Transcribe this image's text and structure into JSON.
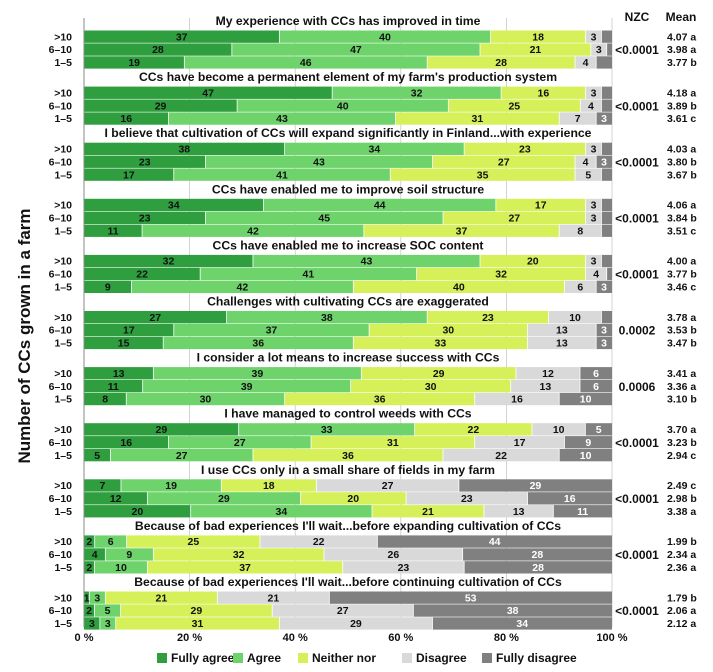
{
  "chart_data": {
    "type": "bar",
    "orientation": "horizontal",
    "stacked": true,
    "percent": true,
    "ylabel": "Number of CCs grown in a farm",
    "xticks": [
      "0 %",
      "20 %",
      "40 %",
      "60 %",
      "80 %",
      "100 %"
    ],
    "xlim": [
      0,
      100
    ],
    "col_headers": {
      "nzc": "NZC",
      "mean": "Mean"
    },
    "categories": [
      ">10",
      "6–10",
      "1–5"
    ],
    "legend": [
      {
        "name": "Fully agree",
        "color": "#2e9e3e"
      },
      {
        "name": "Agree",
        "color": "#6fd36c"
      },
      {
        "name": "Neither nor",
        "color": "#d6f05a"
      },
      {
        "name": "Disagree",
        "color": "#d9d9d9"
      },
      {
        "name": "Fully disagree",
        "color": "#808080"
      }
    ],
    "groups": [
      {
        "title": "My experience with CCs has improved in time",
        "nzc": "<0.0001",
        "rows": [
          {
            "cat": ">10",
            "values": [
              37,
              40,
              18,
              3,
              2
            ],
            "labels": [
              "37",
              "40",
              "18",
              "3",
              ""
            ],
            "mean": "4.07 a"
          },
          {
            "cat": "6–10",
            "values": [
              28,
              47,
              21,
              3,
              1
            ],
            "labels": [
              "28",
              "47",
              "21",
              "3",
              ""
            ],
            "mean": "3.98 a"
          },
          {
            "cat": "1–5",
            "values": [
              19,
              46,
              28,
              4,
              3
            ],
            "labels": [
              "19",
              "46",
              "28",
              "4",
              ""
            ],
            "mean": "3.77 b"
          }
        ]
      },
      {
        "title": "CCs have become a permanent element of my farm's production system",
        "nzc": "<0.0001",
        "rows": [
          {
            "cat": ">10",
            "values": [
              47,
              32,
              16,
              3,
              2
            ],
            "labels": [
              "47",
              "32",
              "16",
              "3",
              ""
            ],
            "mean": "4.18 a"
          },
          {
            "cat": "6–10",
            "values": [
              29,
              40,
              25,
              4,
              2
            ],
            "labels": [
              "29",
              "40",
              "25",
              "4",
              ""
            ],
            "mean": "3.89 b"
          },
          {
            "cat": "1–5",
            "values": [
              16,
              43,
              31,
              7,
              3
            ],
            "labels": [
              "16",
              "43",
              "31",
              "7",
              "3"
            ],
            "mean": "3.61 c"
          }
        ]
      },
      {
        "title": "I believe that cultivation of CCs will expand significantly in Finland...with experience",
        "nzc": "<0.0001",
        "rows": [
          {
            "cat": ">10",
            "values": [
              38,
              34,
              23,
              3,
              2
            ],
            "labels": [
              "38",
              "34",
              "23",
              "3",
              ""
            ],
            "mean": "4.03 a"
          },
          {
            "cat": "6–10",
            "values": [
              23,
              43,
              27,
              4,
              3
            ],
            "labels": [
              "23",
              "43",
              "27",
              "4",
              "3"
            ],
            "mean": "3.80 b"
          },
          {
            "cat": "1–5",
            "values": [
              17,
              41,
              35,
              5,
              2
            ],
            "labels": [
              "17",
              "41",
              "35",
              "5",
              ""
            ],
            "mean": "3.67 b"
          }
        ]
      },
      {
        "title": "CCs have enabled me to improve soil structure",
        "nzc": "<0.0001",
        "rows": [
          {
            "cat": ">10",
            "values": [
              34,
              44,
              17,
              3,
              2
            ],
            "labels": [
              "34",
              "44",
              "17",
              "3",
              ""
            ],
            "mean": "4.06 a"
          },
          {
            "cat": "6–10",
            "values": [
              23,
              45,
              27,
              3,
              2
            ],
            "labels": [
              "23",
              "45",
              "27",
              "3",
              ""
            ],
            "mean": "3.84 b"
          },
          {
            "cat": "1–5",
            "values": [
              11,
              42,
              37,
              8,
              2
            ],
            "labels": [
              "11",
              "42",
              "37",
              "8",
              ""
            ],
            "mean": "3.51 c"
          }
        ]
      },
      {
        "title": "CCs have enabled me to increase SOC content",
        "nzc": "<0.0001",
        "rows": [
          {
            "cat": ">10",
            "values": [
              32,
              43,
              20,
              3,
              2
            ],
            "labels": [
              "32",
              "43",
              "20",
              "3",
              ""
            ],
            "mean": "4.00 a"
          },
          {
            "cat": "6–10",
            "values": [
              22,
              41,
              32,
              4,
              1
            ],
            "labels": [
              "22",
              "41",
              "32",
              "4",
              ""
            ],
            "mean": "3.77 b"
          },
          {
            "cat": "1–5",
            "values": [
              9,
              42,
              40,
              6,
              3
            ],
            "labels": [
              "9",
              "42",
              "40",
              "6",
              "3"
            ],
            "mean": "3.46 c"
          }
        ]
      },
      {
        "title": "Challenges with cultivating CCs are exaggerated",
        "nzc": "0.0002",
        "rows": [
          {
            "cat": ">10",
            "values": [
              27,
              38,
              23,
              10,
              2
            ],
            "labels": [
              "27",
              "38",
              "23",
              "10",
              ""
            ],
            "mean": "3.78 a"
          },
          {
            "cat": "6–10",
            "values": [
              17,
              37,
              30,
              13,
              3
            ],
            "labels": [
              "17",
              "37",
              "30",
              "13",
              "3"
            ],
            "mean": "3.53 b"
          },
          {
            "cat": "1–5",
            "values": [
              15,
              36,
              33,
              13,
              3
            ],
            "labels": [
              "15",
              "36",
              "33",
              "13",
              "3"
            ],
            "mean": "3.47 b"
          }
        ]
      },
      {
        "title": "I consider a lot means to increase success with CCs",
        "nzc": "0.0006",
        "rows": [
          {
            "cat": ">10",
            "values": [
              13,
              39,
              29,
              12,
              6
            ],
            "labels": [
              "13",
              "39",
              "29",
              "12",
              "6"
            ],
            "mean": "3.41 a"
          },
          {
            "cat": "6–10",
            "values": [
              11,
              39,
              30,
              13,
              6
            ],
            "labels": [
              "11",
              "39",
              "30",
              "13",
              "6"
            ],
            "mean": "3.36 a"
          },
          {
            "cat": "1–5",
            "values": [
              8,
              30,
              36,
              16,
              10
            ],
            "labels": [
              "8",
              "30",
              "36",
              "16",
              "10"
            ],
            "mean": "3.10 b"
          }
        ]
      },
      {
        "title": "I have managed to control weeds with CCs",
        "nzc": "<0.0001",
        "rows": [
          {
            "cat": ">10",
            "values": [
              29,
              33,
              22,
              10,
              5
            ],
            "labels": [
              "29",
              "33",
              "22",
              "10",
              "5"
            ],
            "mean": "3.70 a"
          },
          {
            "cat": "6–10",
            "values": [
              16,
              27,
              31,
              17,
              9
            ],
            "labels": [
              "16",
              "27",
              "31",
              "17",
              "9"
            ],
            "mean": "3.23 b"
          },
          {
            "cat": "1–5",
            "values": [
              5,
              27,
              36,
              22,
              10
            ],
            "labels": [
              "5",
              "27",
              "36",
              "22",
              "10"
            ],
            "mean": "2.94 c"
          }
        ]
      },
      {
        "title": "I use CCs only in a small share of fields in my farm",
        "nzc": "<0.0001",
        "rows": [
          {
            "cat": ">10",
            "values": [
              7,
              19,
              18,
              27,
              29
            ],
            "labels": [
              "7",
              "19",
              "18",
              "27",
              "29"
            ],
            "mean": "2.49 c"
          },
          {
            "cat": "6–10",
            "values": [
              12,
              29,
              20,
              23,
              16
            ],
            "labels": [
              "12",
              "29",
              "20",
              "23",
              "16"
            ],
            "mean": "2.98 b"
          },
          {
            "cat": "1–5",
            "values": [
              20,
              34,
              21,
              13,
              11
            ],
            "labels": [
              "20",
              "34",
              "21",
              "13",
              "11"
            ],
            "mean": "3.38 a"
          }
        ]
      },
      {
        "title": "Because of bad experiences I'll wait...before expanding cultivation of CCs",
        "nzc": "<0.0001",
        "rows": [
          {
            "cat": ">10",
            "values": [
              2,
              6,
              25,
              22,
              44
            ],
            "labels": [
              "2",
              "6",
              "25",
              "22",
              "44"
            ],
            "mean": "1.99 b"
          },
          {
            "cat": "6–10",
            "values": [
              4,
              9,
              32,
              26,
              28
            ],
            "labels": [
              "4",
              "9",
              "32",
              "26",
              "28"
            ],
            "mean": "2.34 a"
          },
          {
            "cat": "1–5",
            "values": [
              2,
              10,
              37,
              23,
              28
            ],
            "labels": [
              "2",
              "10",
              "37",
              "23",
              "28"
            ],
            "mean": "2.36 a"
          }
        ]
      },
      {
        "title": "Because of bad experiences I'll wait...before continuing cultivation of CCs",
        "nzc": "<0.0001",
        "rows": [
          {
            "cat": ">10",
            "values": [
              1,
              3,
              21,
              21,
              53
            ],
            "labels": [
              "1",
              "3",
              "21",
              "21",
              "53"
            ],
            "mean": "1.79 b"
          },
          {
            "cat": "6–10",
            "values": [
              2,
              5,
              29,
              27,
              38
            ],
            "labels": [
              "2",
              "5",
              "29",
              "27",
              "38"
            ],
            "mean": "2.06 a"
          },
          {
            "cat": "1–5",
            "values": [
              3,
              3,
              31,
              29,
              34
            ],
            "labels": [
              "3",
              "3",
              "31",
              "29",
              "34"
            ],
            "mean": "2.12 a"
          }
        ]
      }
    ]
  }
}
